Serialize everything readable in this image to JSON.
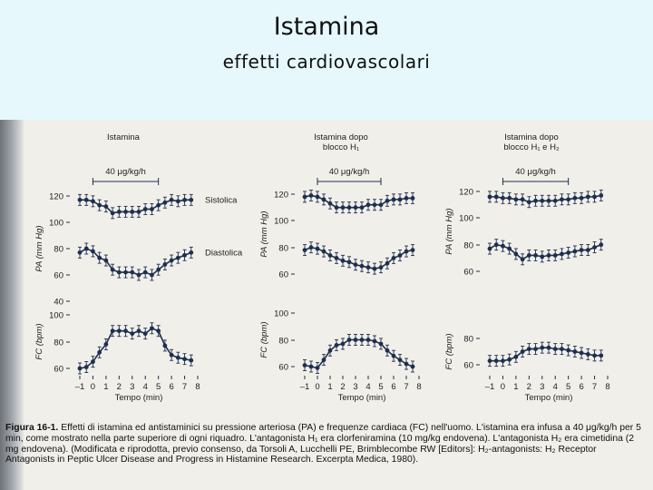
{
  "slide": {
    "title": "Istamina",
    "subtitle": "effetti cardiovascolari"
  },
  "chart_data": [
    {
      "type": "line",
      "panel": "left",
      "title": "Istamina",
      "title_line2": "",
      "bar_label": "40 μg/kg/h",
      "xlabel": "Tempo (min)",
      "x": [
        -1,
        -0.5,
        0,
        0.5,
        1,
        1.5,
        2,
        2.5,
        3,
        3.5,
        4,
        4.5,
        5,
        5.5,
        6,
        6.5,
        7,
        7.5
      ],
      "x_ticks": [
        "–1",
        "0",
        "1",
        "2",
        "3",
        "4",
        "5",
        "6",
        "7",
        "8"
      ],
      "pa": {
        "ylabel": "PA (mm Hg)",
        "yticks": [
          "120",
          "100",
          "80",
          "60",
          "40"
        ],
        "ylim": [
          40,
          125
        ],
        "series": [
          {
            "name": "Sistolica",
            "values": [
              117,
              117,
              116,
              113,
              112,
              107,
              108,
              108,
              108,
              108,
              110,
              110,
              113,
              115,
              117,
              116,
              117,
              117
            ]
          },
          {
            "name": "Diastolica",
            "values": [
              77,
              80,
              78,
              73,
              71,
              64,
              62,
              62,
              62,
              60,
              62,
              60,
              64,
              68,
              71,
              73,
              75,
              77
            ]
          }
        ]
      },
      "fc": {
        "ylabel": "FC (bpm)",
        "yticks": [
          "100",
          "80",
          "60"
        ],
        "ylim": [
          55,
          105
        ],
        "series": [
          {
            "name": "FC",
            "values": [
              60,
              61,
              65,
              72,
              78,
              88,
              88,
              88,
              86,
              88,
              86,
              90,
              88,
              77,
              70,
              68,
              67,
              66
            ]
          }
        ]
      }
    },
    {
      "type": "line",
      "panel": "middle",
      "title": "Istamina dopo",
      "title_line2": "blocco H₁",
      "bar_label": "40 μg/kg/h",
      "xlabel": "Tempo (min)",
      "x": [
        -1,
        -0.5,
        0,
        0.5,
        1,
        1.5,
        2,
        2.5,
        3,
        3.5,
        4,
        4.5,
        5,
        5.5,
        6,
        6.5,
        7,
        7.5
      ],
      "x_ticks": [
        "–1",
        "0",
        "1",
        "2",
        "3",
        "4",
        "5",
        "6",
        "7",
        "8"
      ],
      "pa": {
        "ylabel": "PA (mm Hg)",
        "yticks": [
          "120",
          "100",
          "80",
          "60"
        ],
        "ylim": [
          55,
          125
        ],
        "series": [
          {
            "name": "Sistolica",
            "values": [
              118,
              119,
              118,
              116,
              113,
              110,
              110,
              110,
              110,
              110,
              112,
              112,
              112,
              115,
              116,
              116,
              117,
              117
            ]
          },
          {
            "name": "Diastolica",
            "values": [
              78,
              80,
              79,
              77,
              74,
              72,
              70,
              69,
              67,
              66,
              65,
              64,
              65,
              68,
              72,
              74,
              77,
              78
            ]
          }
        ]
      },
      "fc": {
        "ylabel": "FC (bpm)",
        "yticks": [
          "100",
          "80",
          "60"
        ],
        "ylim": [
          55,
          105
        ],
        "series": [
          {
            "name": "FC",
            "values": [
              61,
              60,
              59,
              65,
              72,
              76,
              77,
              80,
              80,
              80,
              80,
              79,
              77,
              72,
              68,
              65,
              62,
              60
            ]
          }
        ]
      }
    },
    {
      "type": "line",
      "panel": "right",
      "title": "Istamina dopo",
      "title_line2": "blocco H₁ e H₂",
      "bar_label": "40 μg/kg/h",
      "xlabel": "Tempo (min)",
      "x": [
        -1,
        -0.5,
        0,
        0.5,
        1,
        1.5,
        2,
        2.5,
        3,
        3.5,
        4,
        4.5,
        5,
        5.5,
        6,
        6.5,
        7,
        7.5
      ],
      "x_ticks": [
        "–1",
        "0",
        "1",
        "2",
        "3",
        "4",
        "5",
        "6",
        "7",
        "8"
      ],
      "pa": {
        "ylabel": "PA (mm Hg)",
        "yticks": [
          "120",
          "100",
          "80",
          "60"
        ],
        "ylim": [
          55,
          125
        ],
        "series": [
          {
            "name": "Sistolica",
            "values": [
              116,
              116,
              115,
              115,
              114,
              114,
              112,
              113,
              113,
              113,
              113,
              114,
              114,
              115,
              115,
              116,
              116,
              117
            ]
          },
          {
            "name": "Diastolica",
            "values": [
              77,
              80,
              79,
              77,
              73,
              69,
              72,
              72,
              71,
              72,
              72,
              73,
              74,
              75,
              76,
              76,
              78,
              80
            ]
          }
        ]
      },
      "fc": {
        "ylabel": "FC (bpm)",
        "yticks": [
          "80",
          "60"
        ],
        "ylim": [
          55,
          85
        ],
        "series": [
          {
            "name": "FC",
            "values": [
              63,
              63,
              63,
              64,
              66,
              70,
              72,
              72,
              73,
              73,
              72,
              72,
              71,
              70,
              69,
              68,
              67,
              67
            ]
          }
        ]
      }
    }
  ],
  "caption": {
    "label": "Figura 16-1.",
    "text": " Effetti di istamina ed antistaminici su pressione arteriosa (PA) e frequenze cardiaca (FC) nell'uomo. L'istamina era infusa a 40 μg/kg/h per 5 min, come mostrato nella parte superiore di ogni riquadro. L'antagonista H₁ era clorfeniramina (10 mg/kg endovena). L'antagonista H₂ era cimetidina (2 mg endovena). (Modificata e riprodotta, previo consenso, da Torsoli A, Lucchelli PE, Brimblecombe RW [Editors]: H₂-antagonists: H₂ Receptor Antagonists in Peptic Ulcer Disease and Progress in Histamine Research. Excerpta Medica, 1980)."
  }
}
